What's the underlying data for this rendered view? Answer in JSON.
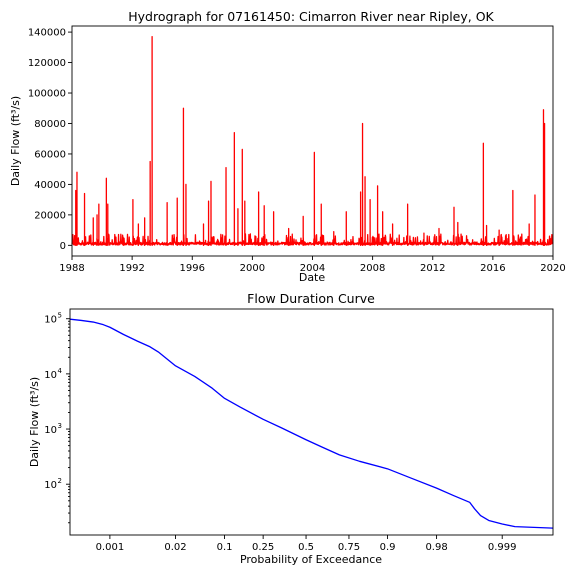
{
  "chart_data": [
    {
      "type": "line",
      "title": "Hydrograph for 07161450: Cimarron River near Ripley, OK",
      "xlabel": "Date",
      "ylabel": "Daily Flow (ft³/s)",
      "xlim": [
        "1988-01-01",
        "2020-01-01"
      ],
      "ylim": [
        -7000,
        144000
      ],
      "x_ticks": [
        "1988",
        "1992",
        "1996",
        "2000",
        "2004",
        "2008",
        "2012",
        "2016",
        "2020"
      ],
      "y_ticks": [
        "0",
        "20000",
        "40000",
        "60000",
        "80000",
        "100000",
        "120000",
        "140000"
      ],
      "series": [
        {
          "color": "#ff0000",
          "peaks": [
            {
              "date": "1988-04-01",
              "value": 36000
            },
            {
              "date": "1988-05-01",
              "value": 48000
            },
            {
              "date": "1988-11-01",
              "value": 34000
            },
            {
              "date": "1989-06-01",
              "value": 18000
            },
            {
              "date": "1989-09-01",
              "value": 20000
            },
            {
              "date": "1989-10-15",
              "value": 27000
            },
            {
              "date": "1990-04-15",
              "value": 44000
            },
            {
              "date": "1990-05-20",
              "value": 27000
            },
            {
              "date": "1991-06-01",
              "value": 5000
            },
            {
              "date": "1992-01-20",
              "value": 30000
            },
            {
              "date": "1992-06-01",
              "value": 14000
            },
            {
              "date": "1992-11-01",
              "value": 18000
            },
            {
              "date": "1993-03-15",
              "value": 55000
            },
            {
              "date": "1993-05-01",
              "value": 137000
            },
            {
              "date": "1994-05-01",
              "value": 28000
            },
            {
              "date": "1995-01-01",
              "value": 31000
            },
            {
              "date": "1995-06-01",
              "value": 90000
            },
            {
              "date": "1995-08-01",
              "value": 40000
            },
            {
              "date": "1996-10-01",
              "value": 14000
            },
            {
              "date": "1997-02-01",
              "value": 29000
            },
            {
              "date": "1997-04-01",
              "value": 42000
            },
            {
              "date": "1998-04-01",
              "value": 51000
            },
            {
              "date": "1998-10-20",
              "value": 74000
            },
            {
              "date": "1999-01-15",
              "value": 24000
            },
            {
              "date": "1999-05-01",
              "value": 63000
            },
            {
              "date": "1999-07-01",
              "value": 29000
            },
            {
              "date": "2000-06-01",
              "value": 35000
            },
            {
              "date": "2000-10-15",
              "value": 26000
            },
            {
              "date": "2001-06-01",
              "value": 22000
            },
            {
              "date": "2002-06-01",
              "value": 11000
            },
            {
              "date": "2003-05-20",
              "value": 19000
            },
            {
              "date": "2004-02-15",
              "value": 61000
            },
            {
              "date": "2004-08-01",
              "value": 27000
            },
            {
              "date": "2005-06-01",
              "value": 9000
            },
            {
              "date": "2006-04-01",
              "value": 22000
            },
            {
              "date": "2007-03-15",
              "value": 35000
            },
            {
              "date": "2007-05-01",
              "value": 80000
            },
            {
              "date": "2007-07-01",
              "value": 45000
            },
            {
              "date": "2007-11-01",
              "value": 30000
            },
            {
              "date": "2008-05-01",
              "value": 39000
            },
            {
              "date": "2008-09-01",
              "value": 22000
            },
            {
              "date": "2009-05-01",
              "value": 14000
            },
            {
              "date": "2010-05-01",
              "value": 27000
            },
            {
              "date": "2011-06-01",
              "value": 8000
            },
            {
              "date": "2012-06-01",
              "value": 11000
            },
            {
              "date": "2013-06-01",
              "value": 25000
            },
            {
              "date": "2013-09-01",
              "value": 15000
            },
            {
              "date": "2015-05-15",
              "value": 67000
            },
            {
              "date": "2015-08-01",
              "value": 13000
            },
            {
              "date": "2016-06-01",
              "value": 10000
            },
            {
              "date": "2017-05-01",
              "value": 36000
            },
            {
              "date": "2018-06-01",
              "value": 14000
            },
            {
              "date": "2018-10-20",
              "value": 33000
            },
            {
              "date": "2019-05-15",
              "value": 89000
            },
            {
              "date": "2019-06-10",
              "value": 80000
            }
          ]
        }
      ]
    },
    {
      "type": "line",
      "title": "Flow Duration Curve",
      "xlabel": "Probability of Exceedance",
      "ylabel": "Daily Flow (ft³/s)",
      "x_scale": "normal-probability",
      "y_scale": "log",
      "xlim": [
        0.0001,
        0.99995
      ],
      "ylim": [
        12,
        150000
      ],
      "x_ticks": [
        "0.001",
        "0.02",
        "0.1",
        "0.25",
        "0.5",
        "0.75",
        "0.9",
        "0.98",
        "0.999"
      ],
      "y_tick_base": "10",
      "y_tick_exponents": [
        "2",
        "3",
        "4",
        "5"
      ],
      "series": [
        {
          "color": "#0000ff",
          "x": [
            0.0001,
            0.0002,
            0.0004,
            0.0007,
            0.001,
            0.002,
            0.004,
            0.007,
            0.01,
            0.02,
            0.04,
            0.07,
            0.1,
            0.15,
            0.25,
            0.35,
            0.5,
            0.6,
            0.7,
            0.8,
            0.9,
            0.95,
            0.98,
            0.99,
            0.995,
            0.996,
            0.997,
            0.998,
            0.999,
            0.9995,
            0.99995
          ],
          "y": [
            98000,
            93000,
            87000,
            78000,
            70000,
            52000,
            39000,
            31000,
            25000,
            14000,
            9000,
            5500,
            3600,
            2500,
            1500,
            1050,
            640,
            470,
            340,
            260,
            190,
            130,
            85,
            62,
            47,
            36,
            27,
            22,
            19,
            17,
            16
          ]
        }
      ]
    }
  ]
}
